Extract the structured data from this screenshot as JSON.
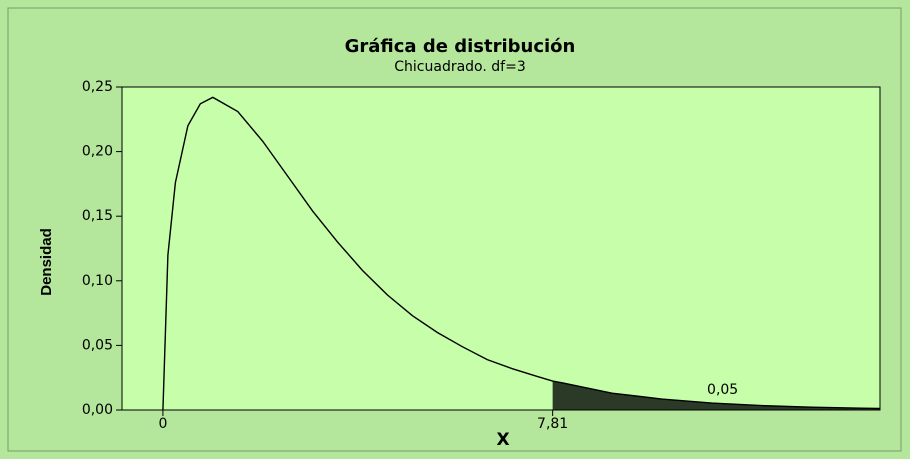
{
  "chart_data": {
    "type": "line",
    "title": "Gráfica de distribución",
    "subtitle": "Chicuadrado. df=3",
    "x_label": "X",
    "y_label": "Densidad",
    "x": [
      0,
      0.1,
      0.25,
      0.5,
      0.75,
      1,
      1.5,
      2,
      2.5,
      3,
      3.5,
      4,
      4.5,
      5,
      5.5,
      6,
      6.5,
      7,
      7.5,
      7.81,
      8,
      9,
      10,
      11,
      12,
      13,
      14,
      14.36
    ],
    "series": [
      {
        "name": "Densidad",
        "color": "#000000",
        "values": [
          0,
          0.12,
          0.176,
          0.22,
          0.237,
          0.242,
          0.231,
          0.208,
          0.181,
          0.154,
          0.13,
          0.108,
          0.089,
          0.073,
          0.06,
          0.049,
          0.039,
          0.032,
          0.026,
          0.0224,
          0.021,
          0.013,
          0.0085,
          0.0054,
          0.0034,
          0.0022,
          0.0014,
          0.0012
        ]
      }
    ],
    "shaded_area": {
      "x_from": 7.81,
      "value": 0.05,
      "value_label": "0,05",
      "color": "#2b3a27"
    },
    "xlim": [
      -0.82,
      14.37
    ],
    "xticks": [
      0,
      {
        "value": 7.81,
        "label": "7,81"
      }
    ],
    "ylim": [
      0,
      0.25
    ],
    "yticks": [
      {
        "value": 0,
        "label": "0,00"
      },
      {
        "value": 0.05,
        "label": "0,05"
      },
      {
        "value": 0.1,
        "label": "0,10"
      },
      {
        "value": 0.15,
        "label": "0,15"
      },
      {
        "value": 0.2,
        "label": "0,20"
      },
      {
        "value": 0.25,
        "label": "0,25"
      }
    ],
    "plot_color": "#c6fea9"
  }
}
